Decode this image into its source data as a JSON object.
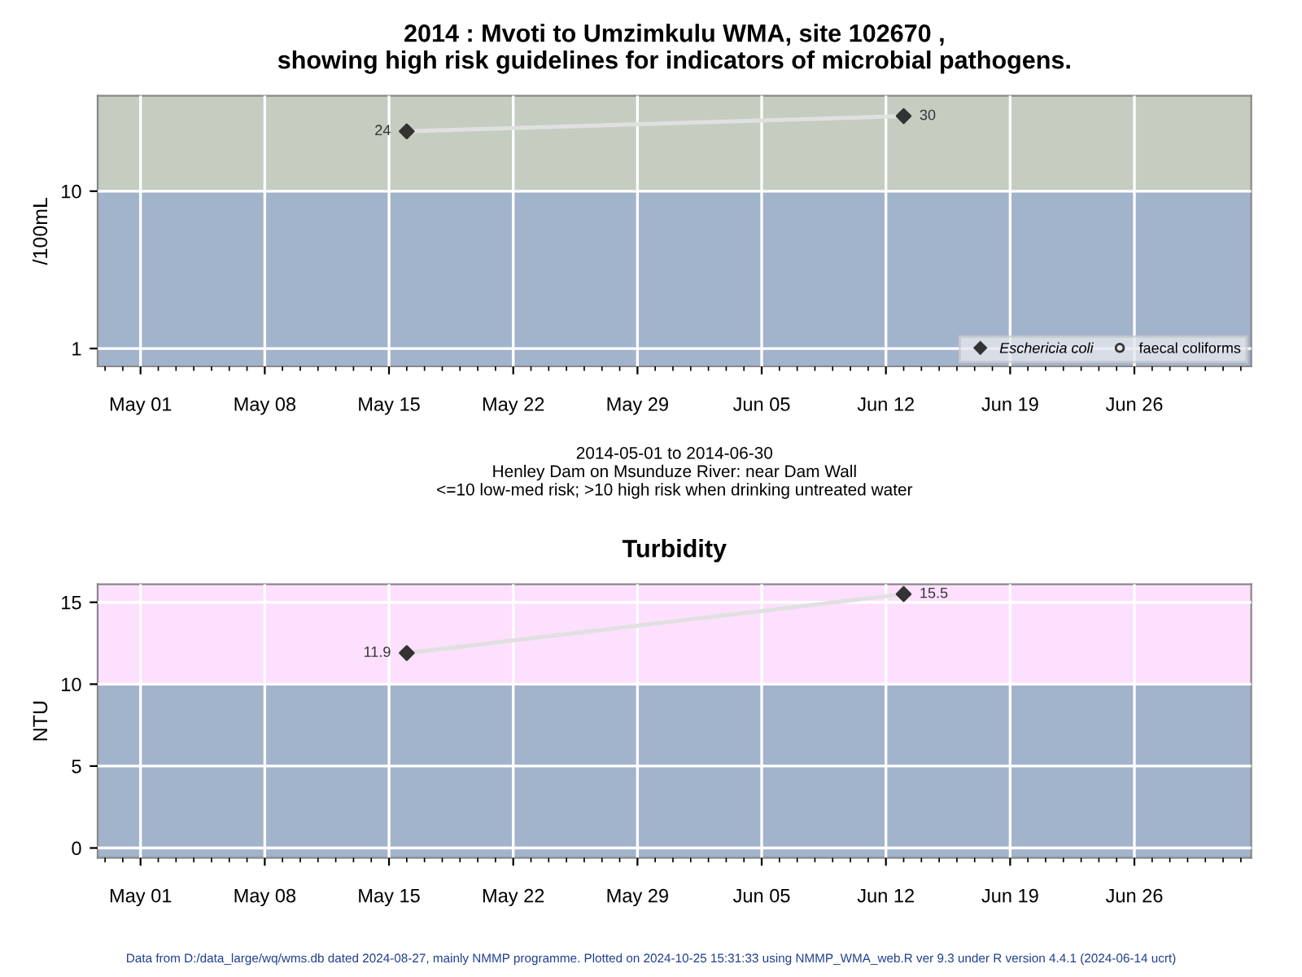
{
  "chart_data": [
    {
      "type": "line",
      "title": "2014 : Mvoti to Umzimkulu WMA, site 102670 ,\nshowing high risk guidelines for indicators of microbial pathogens.",
      "ylabel": "/100mL",
      "xlabel": "2014-05-01 to 2014-06-30\nHenley Dam on Msunduze River: near Dam Wall\n<=10 low-med risk; >10 high risk when drinking untreated water",
      "x": [
        "2014-05-16",
        "2014-06-13"
      ],
      "series": [
        {
          "color": "#e0e0e0",
          "values": [
            24,
            30
          ],
          "marker": "none"
        },
        {
          "type": "scatter",
          "name": "Eschericia coli",
          "color": "#333333",
          "values": [
            24,
            30
          ],
          "marker": "diamond",
          "data_labels": true
        },
        {
          "type": "scatter",
          "name": "faecal coliforms",
          "color": "#333333",
          "values": [
            null,
            null
          ],
          "marker": "circle"
        }
      ],
      "log": true,
      "ylim": [
        0.77,
        40.4
      ],
      "yticks": [
        1,
        10
      ],
      "xlim": [
        "2014-04-28T14:00",
        "2014-07-02T14:00"
      ],
      "xticks": [
        {
          "value": "2014-05-01",
          "label": "May 01"
        },
        {
          "value": "2014-05-08",
          "label": "May 08"
        },
        {
          "value": "2014-05-15",
          "label": "May 15"
        },
        {
          "value": "2014-05-22",
          "label": "May 22"
        },
        {
          "value": "2014-05-29",
          "label": "May 29"
        },
        {
          "value": "2014-06-05",
          "label": "Jun 05"
        },
        {
          "value": "2014-06-12",
          "label": "Jun 12"
        },
        {
          "value": "2014-06-19",
          "label": "Jun 19"
        },
        {
          "value": "2014-06-26",
          "label": "Jun 26"
        }
      ],
      "bands": [
        {
          "axis": "y",
          "from": 0.77,
          "to": 10,
          "color": "#a2b3cc"
        },
        {
          "axis": "y",
          "from": 10,
          "to": 40.4,
          "color": "#c4cdc0"
        }
      ],
      "grid": true,
      "legend": "bottom right"
    },
    {
      "type": "line",
      "title": "Turbidity",
      "ylabel": "NTU",
      "x": [
        "2014-05-16",
        "2014-06-13"
      ],
      "series": [
        {
          "color": "#e0e0e0",
          "values": [
            11.9,
            15.5
          ],
          "marker": "none"
        },
        {
          "type": "scatter",
          "color": "#333333",
          "values": [
            11.9,
            15.5
          ],
          "marker": "diamond",
          "data_labels": true
        }
      ],
      "ylim": [
        -0.6,
        16.1
      ],
      "yticks": [
        0,
        5,
        10,
        15
      ],
      "xlim": [
        "2014-04-28T14:00",
        "2014-07-02T14:00"
      ],
      "xticks": [
        {
          "value": "2014-05-01",
          "label": "May 01"
        },
        {
          "value": "2014-05-08",
          "label": "May 08"
        },
        {
          "value": "2014-05-15",
          "label": "May 15"
        },
        {
          "value": "2014-05-22",
          "label": "May 22"
        },
        {
          "value": "2014-05-29",
          "label": "May 29"
        },
        {
          "value": "2014-06-05",
          "label": "Jun 05"
        },
        {
          "value": "2014-06-12",
          "label": "Jun 12"
        },
        {
          "value": "2014-06-19",
          "label": "Jun 19"
        },
        {
          "value": "2014-06-26",
          "label": "Jun 26"
        }
      ],
      "bands": [
        {
          "axis": "y",
          "from": -0.6,
          "to": 10,
          "color": "#a2b3cc"
        },
        {
          "axis": "y",
          "from": 10,
          "to": 16.1,
          "color": "#fde0fd"
        }
      ],
      "grid": true,
      "legend": false,
      "annotations": [
        "Data from D:/data_large/wq/wms.db dated 2024-08-27, mainly NMMP programme. Plotted on 2024-10-25 15:31:33 using NMMP_WMA_web.R ver 9.3 under R version 4.4.1 (2024-06-14 ucrt)"
      ]
    }
  ]
}
